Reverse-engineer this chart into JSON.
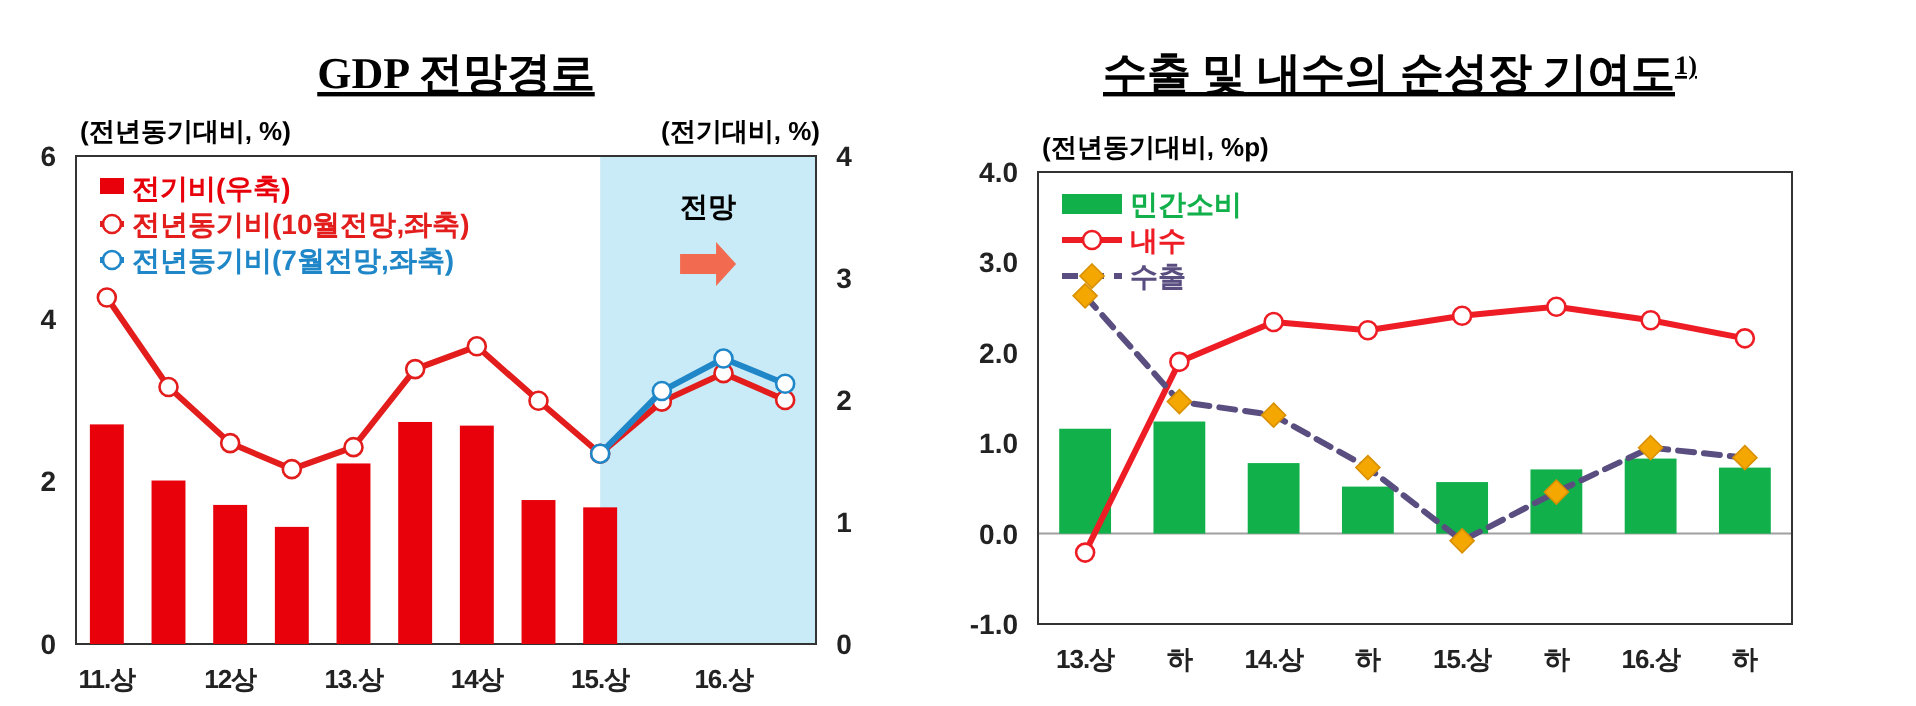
{
  "chart_data": [
    {
      "type": "bar",
      "title": "GDP 전망경로",
      "ylabel": "(전년동기대비, %)",
      "y2label": "(전기대비, %)",
      "categories": [
        "11.상",
        null,
        "12상",
        null,
        "13.상",
        null,
        "14상",
        null,
        "15.상",
        null,
        "16.상",
        null
      ],
      "series": [
        {
          "name": "전기비(우축)",
          "axis": "y2",
          "color": "#e8000b",
          "values": [
            1.8,
            1.34,
            1.14,
            0.96,
            1.48,
            1.82,
            1.79,
            1.18,
            1.12,
            null,
            null,
            null
          ]
        },
        {
          "name": "전년동기비(10월전망,좌축)",
          "type": "line",
          "color": "#e31c1c",
          "marker": "circle",
          "line_style": "solid",
          "values": [
            4.26,
            3.16,
            2.47,
            2.15,
            2.42,
            3.38,
            3.66,
            2.99,
            2.34,
            2.98,
            3.33,
            3.0
          ]
        },
        {
          "name": "전년동기비(7월전망,좌축)",
          "type": "line",
          "color": "#1f87c8",
          "marker": "circle",
          "line_style": "solid",
          "values": [
            null,
            null,
            null,
            null,
            null,
            null,
            null,
            null,
            2.34,
            3.11,
            3.51,
            3.2
          ]
        }
      ],
      "ylim": [
        0,
        6
      ],
      "yticks": [
        0,
        2,
        4,
        6
      ],
      "y2lim": [
        0,
        4
      ],
      "y2ticks": [
        0,
        1,
        2,
        3,
        4
      ],
      "annotations": [
        "전망"
      ],
      "legend": "top left",
      "grid": false
    },
    {
      "type": "bar",
      "title": "수출 및 내수의 순성장 기여도$^{1)}$",
      "ylabel": "(전년동기대비, %p)",
      "categories": [
        "13.상",
        "하",
        "14.상",
        "하",
        "15.상",
        "하",
        "16.상",
        "하"
      ],
      "series": [
        {
          "name": "민간소비",
          "color": "#12b04b",
          "values": [
            1.16,
            1.24,
            0.78,
            0.52,
            0.57,
            0.71,
            0.83,
            0.73
          ]
        },
        {
          "name": "내수",
          "type": "line",
          "color": "#ee1c24",
          "marker": "circle",
          "line_style": "solid",
          "values": [
            -0.21,
            1.9,
            2.34,
            2.25,
            2.41,
            2.51,
            2.36,
            2.16
          ]
        },
        {
          "name": "수출",
          "type": "line",
          "color": "#5a4e80",
          "marker": "diamond",
          "line_style": "dashed",
          "values": [
            2.63,
            1.46,
            1.31,
            0.73,
            -0.08,
            0.46,
            0.95,
            0.84
          ]
        }
      ],
      "ylim": [
        -1,
        4
      ],
      "yticks": [
        {
          "value": -1,
          "label": "-1.0"
        },
        {
          "value": 0,
          "label": "0.0"
        },
        {
          "value": 1,
          "label": "1.0"
        },
        {
          "value": 2,
          "label": "2.0"
        },
        {
          "value": 3,
          "label": "3.0"
        },
        {
          "value": 4,
          "label": "4.0"
        }
      ],
      "ref_lines": [
        {
          "axis": "y",
          "value": 0,
          "label": null,
          "color": "#a0a0a0"
        }
      ],
      "legend": "top left",
      "grid": false
    }
  ]
}
